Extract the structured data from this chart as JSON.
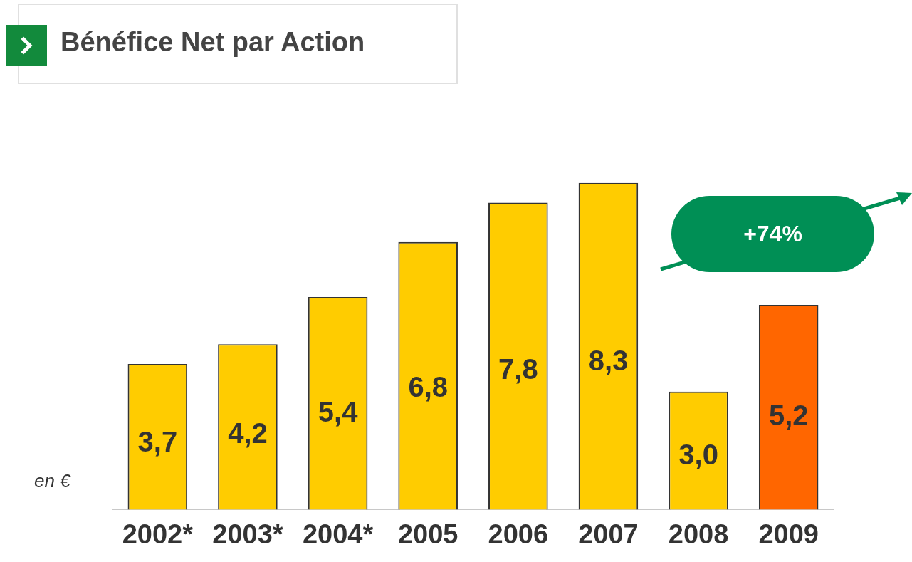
{
  "chart_data": {
    "type": "bar",
    "title": "Bénéfice Net par Action",
    "categories": [
      "2002*",
      "2003*",
      "2004*",
      "2005",
      "2006",
      "2007",
      "2008",
      "2009"
    ],
    "values": [
      3.7,
      4.2,
      5.4,
      6.8,
      7.8,
      8.3,
      3.0,
      5.2
    ],
    "value_labels": [
      "3,7",
      "4,2",
      "5,4",
      "6,8",
      "7,8",
      "8,3",
      "3,0",
      "5,2"
    ],
    "colors": [
      "#ffcc00",
      "#ffcc00",
      "#ffcc00",
      "#ffcc00",
      "#ffcc00",
      "#ffcc00",
      "#ffcc00",
      "#ff6600"
    ],
    "annotations": [
      "en €",
      "+74%"
    ],
    "grid": false,
    "legend": false
  }
}
